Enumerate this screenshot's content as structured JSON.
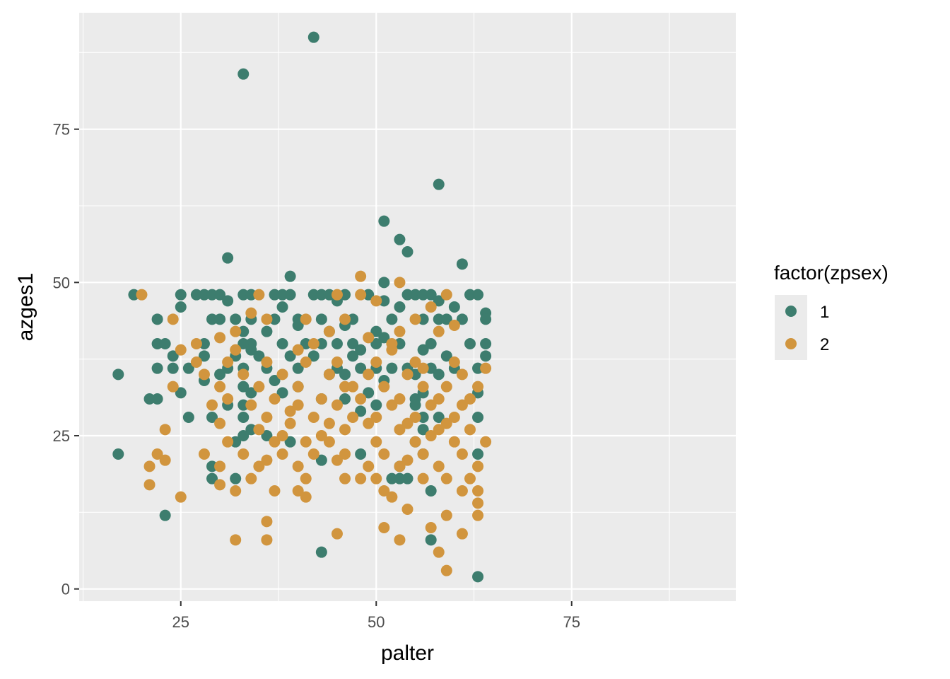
{
  "chart_data": {
    "type": "scatter",
    "title": "",
    "xlabel": "palter",
    "ylabel": "azges1",
    "xlim": [
      12,
      96
    ],
    "ylim": [
      -2,
      94
    ],
    "x_ticks": [
      25,
      50,
      75
    ],
    "y_ticks": [
      0,
      25,
      50,
      75
    ],
    "x_tick_labels": [
      "25",
      "50",
      "75"
    ],
    "y_tick_labels": [
      "0",
      "25",
      "50",
      "75"
    ],
    "grid": true,
    "panel_background": "#ebebeb",
    "legend": {
      "title": "factor(zpsex)",
      "placement": "right",
      "entries": [
        {
          "label": "1",
          "color": "#3d7d6e"
        },
        {
          "label": "2",
          "color": "#d1953e"
        }
      ]
    },
    "series": [
      {
        "name": "1",
        "color": "#3d7d6e",
        "points": [
          [
            42,
            90
          ],
          [
            33,
            84
          ],
          [
            58,
            66
          ],
          [
            51,
            60
          ],
          [
            53,
            57
          ],
          [
            54,
            55
          ],
          [
            31,
            54
          ],
          [
            61,
            53
          ],
          [
            39,
            51
          ],
          [
            51,
            50
          ],
          [
            19,
            48
          ],
          [
            25,
            48
          ],
          [
            27,
            48
          ],
          [
            28,
            48
          ],
          [
            29,
            48
          ],
          [
            30,
            48
          ],
          [
            33,
            48
          ],
          [
            34,
            48
          ],
          [
            37,
            48
          ],
          [
            38,
            48
          ],
          [
            39,
            48
          ],
          [
            42,
            48
          ],
          [
            43,
            48
          ],
          [
            44,
            48
          ],
          [
            46,
            48
          ],
          [
            49,
            48
          ],
          [
            54,
            48
          ],
          [
            55,
            48
          ],
          [
            56,
            48
          ],
          [
            57,
            48
          ],
          [
            62,
            48
          ],
          [
            63,
            48
          ],
          [
            31,
            47
          ],
          [
            45,
            47
          ],
          [
            51,
            47
          ],
          [
            58,
            47
          ],
          [
            25,
            46
          ],
          [
            38,
            46
          ],
          [
            53,
            46
          ],
          [
            60,
            46
          ],
          [
            64,
            45
          ],
          [
            29,
            44
          ],
          [
            30,
            44
          ],
          [
            32,
            44
          ],
          [
            34,
            44
          ],
          [
            37,
            44
          ],
          [
            40,
            44
          ],
          [
            43,
            44
          ],
          [
            47,
            44
          ],
          [
            52,
            44
          ],
          [
            56,
            44
          ],
          [
            58,
            44
          ],
          [
            59,
            44
          ],
          [
            61,
            44
          ],
          [
            64,
            44
          ],
          [
            22,
            44
          ],
          [
            40,
            43
          ],
          [
            46,
            43
          ],
          [
            50,
            42
          ],
          [
            33,
            42
          ],
          [
            44,
            42
          ],
          [
            36,
            42
          ],
          [
            51,
            41
          ],
          [
            22,
            40
          ],
          [
            23,
            40
          ],
          [
            28,
            40
          ],
          [
            33,
            40
          ],
          [
            34,
            40
          ],
          [
            38,
            40
          ],
          [
            41,
            40
          ],
          [
            43,
            40
          ],
          [
            45,
            40
          ],
          [
            47,
            40
          ],
          [
            50,
            40
          ],
          [
            53,
            40
          ],
          [
            57,
            40
          ],
          [
            62,
            40
          ],
          [
            64,
            40
          ],
          [
            34,
            39
          ],
          [
            48,
            39
          ],
          [
            56,
            39
          ],
          [
            24,
            38
          ],
          [
            28,
            38
          ],
          [
            32,
            38
          ],
          [
            35,
            38
          ],
          [
            39,
            38
          ],
          [
            42,
            38
          ],
          [
            47,
            38
          ],
          [
            59,
            38
          ],
          [
            64,
            38
          ],
          [
            17,
            35
          ],
          [
            22,
            36
          ],
          [
            24,
            36
          ],
          [
            26,
            36
          ],
          [
            31,
            36
          ],
          [
            33,
            36
          ],
          [
            36,
            36
          ],
          [
            40,
            36
          ],
          [
            45,
            36
          ],
          [
            48,
            36
          ],
          [
            50,
            36
          ],
          [
            52,
            36
          ],
          [
            54,
            36
          ],
          [
            57,
            36
          ],
          [
            60,
            36
          ],
          [
            63,
            36
          ],
          [
            30,
            35
          ],
          [
            44,
            35
          ],
          [
            46,
            35
          ],
          [
            55,
            35
          ],
          [
            58,
            35
          ],
          [
            28,
            34
          ],
          [
            37,
            34
          ],
          [
            51,
            34
          ],
          [
            33,
            33
          ],
          [
            40,
            33
          ],
          [
            25,
            32
          ],
          [
            34,
            32
          ],
          [
            38,
            32
          ],
          [
            49,
            32
          ],
          [
            56,
            32
          ],
          [
            63,
            32
          ],
          [
            21,
            31
          ],
          [
            22,
            31
          ],
          [
            43,
            31
          ],
          [
            46,
            31
          ],
          [
            55,
            31
          ],
          [
            50,
            30
          ],
          [
            33,
            30
          ],
          [
            55,
            30
          ],
          [
            31,
            30
          ],
          [
            48,
            29
          ],
          [
            33,
            28
          ],
          [
            26,
            28
          ],
          [
            29,
            28
          ],
          [
            56,
            28
          ],
          [
            58,
            28
          ],
          [
            63,
            28
          ],
          [
            34,
            26
          ],
          [
            56,
            26
          ],
          [
            33,
            25
          ],
          [
            36,
            25
          ],
          [
            32,
            24
          ],
          [
            39,
            24
          ],
          [
            55,
            24
          ],
          [
            17,
            22
          ],
          [
            48,
            22
          ],
          [
            56,
            22
          ],
          [
            63,
            22
          ],
          [
            43,
            21
          ],
          [
            29,
            20
          ],
          [
            53,
            20
          ],
          [
            29,
            18
          ],
          [
            32,
            18
          ],
          [
            52,
            18
          ],
          [
            53,
            18
          ],
          [
            54,
            18
          ],
          [
            57,
            16
          ],
          [
            23,
            12
          ],
          [
            57,
            8
          ],
          [
            43,
            6
          ],
          [
            63,
            2
          ]
        ]
      },
      {
        "name": "2",
        "color": "#d1953e",
        "points": [
          [
            20,
            48
          ],
          [
            35,
            48
          ],
          [
            45,
            48
          ],
          [
            48,
            48
          ],
          [
            59,
            48
          ],
          [
            48,
            51
          ],
          [
            53,
            50
          ],
          [
            50,
            47
          ],
          [
            57,
            46
          ],
          [
            24,
            44
          ],
          [
            36,
            44
          ],
          [
            41,
            44
          ],
          [
            46,
            44
          ],
          [
            55,
            44
          ],
          [
            60,
            43
          ],
          [
            34,
            45
          ],
          [
            32,
            42
          ],
          [
            44,
            42
          ],
          [
            53,
            42
          ],
          [
            58,
            42
          ],
          [
            30,
            41
          ],
          [
            49,
            41
          ],
          [
            25,
            39
          ],
          [
            32,
            39
          ],
          [
            40,
            39
          ],
          [
            52,
            39
          ],
          [
            27,
            37
          ],
          [
            31,
            37
          ],
          [
            36,
            37
          ],
          [
            41,
            37
          ],
          [
            45,
            37
          ],
          [
            50,
            37
          ],
          [
            55,
            37
          ],
          [
            60,
            37
          ],
          [
            64,
            36
          ],
          [
            28,
            35
          ],
          [
            33,
            35
          ],
          [
            38,
            35
          ],
          [
            44,
            35
          ],
          [
            49,
            35
          ],
          [
            54,
            35
          ],
          [
            61,
            35
          ],
          [
            24,
            33
          ],
          [
            30,
            33
          ],
          [
            35,
            33
          ],
          [
            40,
            33
          ],
          [
            46,
            33
          ],
          [
            51,
            33
          ],
          [
            56,
            33
          ],
          [
            59,
            33
          ],
          [
            63,
            33
          ],
          [
            31,
            31
          ],
          [
            37,
            31
          ],
          [
            43,
            31
          ],
          [
            48,
            31
          ],
          [
            53,
            31
          ],
          [
            58,
            31
          ],
          [
            62,
            31
          ],
          [
            29,
            30
          ],
          [
            34,
            30
          ],
          [
            40,
            30
          ],
          [
            45,
            30
          ],
          [
            52,
            30
          ],
          [
            57,
            30
          ],
          [
            61,
            30
          ],
          [
            36,
            28
          ],
          [
            42,
            28
          ],
          [
            47,
            28
          ],
          [
            50,
            28
          ],
          [
            55,
            28
          ],
          [
            60,
            28
          ],
          [
            30,
            27
          ],
          [
            39,
            27
          ],
          [
            44,
            27
          ],
          [
            49,
            27
          ],
          [
            54,
            27
          ],
          [
            59,
            27
          ],
          [
            23,
            26
          ],
          [
            35,
            26
          ],
          [
            46,
            26
          ],
          [
            53,
            26
          ],
          [
            58,
            26
          ],
          [
            62,
            26
          ],
          [
            31,
            24
          ],
          [
            37,
            24
          ],
          [
            41,
            24
          ],
          [
            44,
            24
          ],
          [
            50,
            24
          ],
          [
            55,
            24
          ],
          [
            60,
            24
          ],
          [
            64,
            24
          ],
          [
            22,
            22
          ],
          [
            28,
            22
          ],
          [
            33,
            22
          ],
          [
            38,
            22
          ],
          [
            42,
            22
          ],
          [
            46,
            22
          ],
          [
            51,
            22
          ],
          [
            56,
            22
          ],
          [
            61,
            22
          ],
          [
            23,
            21
          ],
          [
            36,
            21
          ],
          [
            45,
            21
          ],
          [
            54,
            21
          ],
          [
            21,
            20
          ],
          [
            30,
            20
          ],
          [
            35,
            20
          ],
          [
            40,
            20
          ],
          [
            49,
            20
          ],
          [
            53,
            20
          ],
          [
            58,
            20
          ],
          [
            63,
            20
          ],
          [
            34,
            18
          ],
          [
            41,
            18
          ],
          [
            46,
            18
          ],
          [
            50,
            18
          ],
          [
            56,
            18
          ],
          [
            59,
            18
          ],
          [
            62,
            18
          ],
          [
            21,
            17
          ],
          [
            30,
            17
          ],
          [
            37,
            16
          ],
          [
            40,
            16
          ],
          [
            51,
            16
          ],
          [
            61,
            16
          ],
          [
            63,
            16
          ],
          [
            25,
            15
          ],
          [
            41,
            15
          ],
          [
            52,
            15
          ],
          [
            32,
            16
          ],
          [
            54,
            13
          ],
          [
            59,
            12
          ],
          [
            63,
            12
          ],
          [
            36,
            11
          ],
          [
            51,
            10
          ],
          [
            57,
            10
          ],
          [
            45,
            9
          ],
          [
            61,
            9
          ],
          [
            32,
            8
          ],
          [
            36,
            8
          ],
          [
            53,
            8
          ],
          [
            58,
            6
          ],
          [
            59,
            3
          ],
          [
            63,
            14
          ],
          [
            56,
            36
          ],
          [
            47,
            33
          ],
          [
            39,
            29
          ],
          [
            43,
            25
          ],
          [
            57,
            25
          ],
          [
            27,
            40
          ],
          [
            42,
            40
          ],
          [
            52,
            40
          ],
          [
            38,
            25
          ],
          [
            48,
            18
          ]
        ]
      }
    ]
  }
}
